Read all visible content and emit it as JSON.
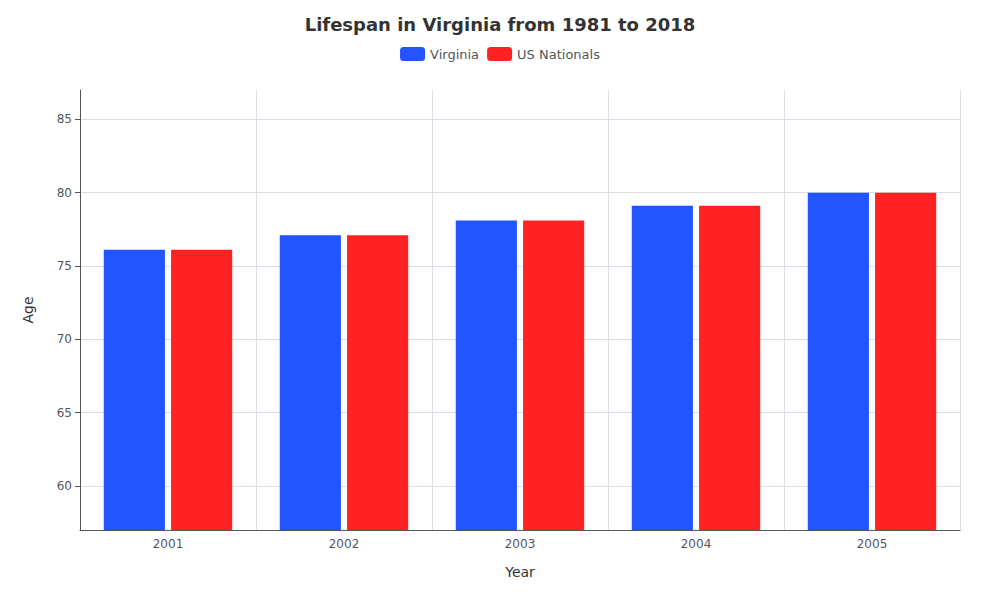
{
  "chart_data": {
    "type": "bar",
    "title": "Lifespan in Virginia from 1981 to 2018",
    "x_label": "Year",
    "y_label": "Age",
    "categories": [
      "2001",
      "2002",
      "2003",
      "2004",
      "2005"
    ],
    "series": [
      {
        "name": "Virginia",
        "color": "#2255ff",
        "values": [
          76.1,
          77.1,
          78.1,
          79.1,
          80.0
        ]
      },
      {
        "name": "US Nationals",
        "color": "#ff2222",
        "values": [
          76.1,
          77.1,
          78.1,
          79.1,
          80.0
        ]
      }
    ],
    "ylim": [
      57,
      87
    ],
    "yticks": [
      60,
      65,
      70,
      75,
      80,
      85
    ],
    "grid": true,
    "legend": "top"
  }
}
